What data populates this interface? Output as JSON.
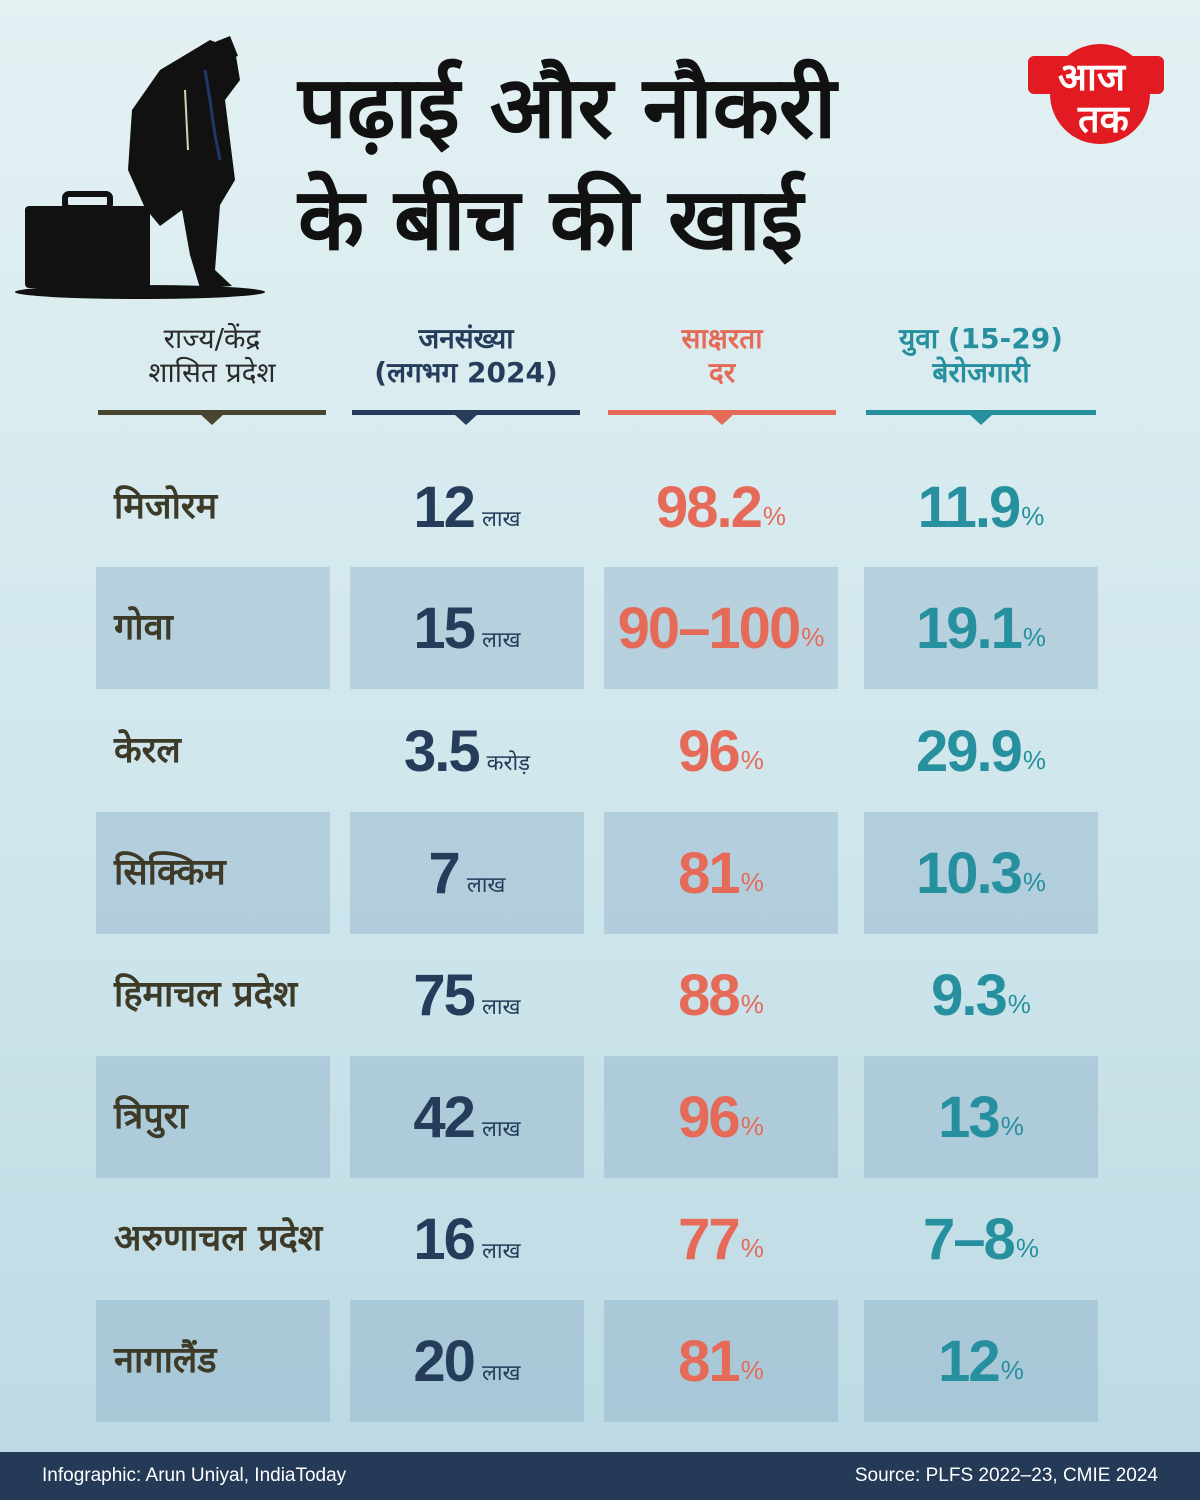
{
  "title": {
    "line1": "पढ़ाई और नौकरी",
    "line2": "के बीच की खाई"
  },
  "logo": {
    "line1": "आज",
    "line2": "तक",
    "color": "#e21b22"
  },
  "headers": [
    {
      "line1": "राज्य/केंद्र",
      "line2": "शासित प्रदेश",
      "color": "#4a4530"
    },
    {
      "line1": "जनसंख्या",
      "line2": "(लगभग 2024)",
      "color": "#253d5b"
    },
    {
      "line1": "साक्षरता",
      "line2": "दर",
      "color": "#e56b58"
    },
    {
      "line1": "युवा (15-29)",
      "line2": "बेरोजगारी",
      "color": "#27909f"
    }
  ],
  "rows": [
    {
      "state": "मिजोरम",
      "pop": "12",
      "pop_unit": "लाख",
      "literacy": "98.2",
      "unemployment": "11.9"
    },
    {
      "state": "गोवा",
      "pop": "15",
      "pop_unit": "लाख",
      "literacy": "90–100",
      "unemployment": "19.1"
    },
    {
      "state": "केरल",
      "pop": "3.5",
      "pop_unit": "करोड़",
      "literacy": "96",
      "unemployment": "29.9"
    },
    {
      "state": "सिक्किम",
      "pop": "7",
      "pop_unit": "लाख",
      "literacy": "81",
      "unemployment": "10.3"
    },
    {
      "state": "हिमाचल प्रदेश",
      "pop": "75",
      "pop_unit": "लाख",
      "literacy": "88",
      "unemployment": "9.3"
    },
    {
      "state": "त्रिपुरा",
      "pop": "42",
      "pop_unit": "लाख",
      "literacy": "96",
      "unemployment": "13"
    },
    {
      "state": "अरुणाचल प्रदेश",
      "pop": "16",
      "pop_unit": "लाख",
      "literacy": "77",
      "unemployment": "7–8"
    },
    {
      "state": "नागालैंड",
      "pop": "20",
      "pop_unit": "लाख",
      "literacy": "81",
      "unemployment": "12"
    }
  ],
  "percent_sign": "%",
  "footer": {
    "credit": "Infographic: Arun Uniyal, IndiaToday",
    "source": "Source: PLFS 2022–23, CMIE 2024"
  }
}
